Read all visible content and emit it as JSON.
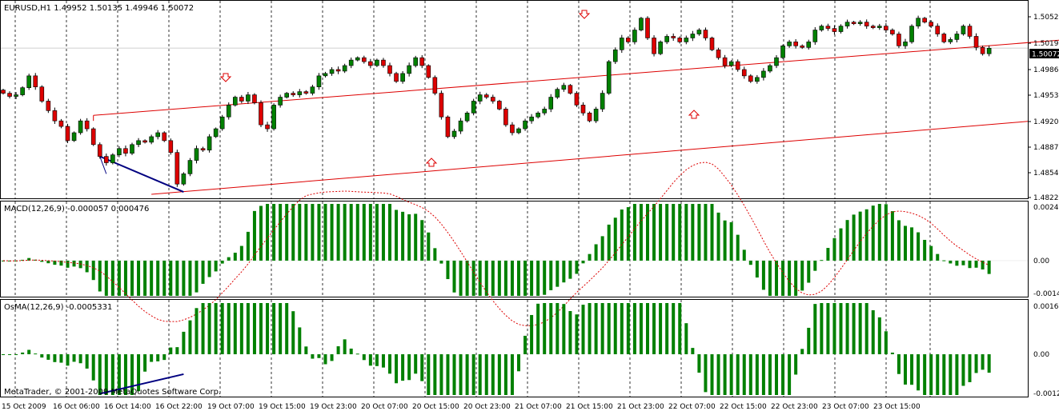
{
  "main": {
    "header": "EURUSD,H1  1.49952 1.50135 1.49946 1.50072",
    "y_ticks": [
      "1.50520",
      "1.50190",
      "1.49860",
      "1.49530",
      "1.49200",
      "1.48870",
      "1.48540",
      "1.48220"
    ],
    "price_tag": "1.50072"
  },
  "macd": {
    "label": "MACD(12,26,9) -0.000057 0.000476",
    "y_ticks": [
      "0.00240",
      "0.00",
      "-0.00149"
    ]
  },
  "osma": {
    "label": "OsMA(12,26,9) -0.0005331",
    "y_ticks": [
      "0.00162",
      "0.00",
      "-0.00129"
    ]
  },
  "x_ticks": [
    "15 Oct 2009",
    "16 Oct 06:00",
    "16 Oct 14:00",
    "16 Oct 22:00",
    "19 Oct 07:00",
    "19 Oct 15:00",
    "19 Oct 23:00",
    "20 Oct 07:00",
    "20 Oct 15:00",
    "20 Oct 23:00",
    "21 Oct 07:00",
    "21 Oct 15:00",
    "21 Oct 23:00",
    "22 Oct 07:00",
    "22 Oct 15:00",
    "22 Oct 23:00",
    "23 Oct 07:00",
    "23 Oct 15:00"
  ],
  "copyright": "MetaTrader, © 2001-2009 MetaQuotes Software Corp.",
  "colors": {
    "bull": "#008000",
    "bear": "#dd0000",
    "channel": "#dd0000",
    "divergence": "#000080",
    "grid": "#000000",
    "signal": "#dd0000",
    "bar": "#008000"
  },
  "chart_data": {
    "type": "candlestick",
    "symbol": "EURUSD",
    "timeframe": "H1",
    "last_bar": {
      "open": 1.49952,
      "high": 1.50135,
      "low": 1.49946,
      "close": 1.50072
    },
    "ylim": [
      1.4818,
      1.5066
    ],
    "closes": [
      1.495,
      1.4946,
      1.4948,
      1.4957,
      1.4972,
      1.4958,
      1.494,
      1.4928,
      1.4915,
      1.4908,
      1.489,
      1.49,
      1.4915,
      1.4905,
      1.4885,
      1.487,
      1.4862,
      1.4872,
      1.488,
      1.4874,
      1.4885,
      1.489,
      1.4888,
      1.4895,
      1.49,
      1.489,
      1.4875,
      1.4835,
      1.4848,
      1.4865,
      1.488,
      1.4878,
      1.4895,
      1.4905,
      1.492,
      1.4935,
      1.4945,
      1.494,
      1.4948,
      1.4938,
      1.491,
      1.4905,
      1.4935,
      1.4945,
      1.495,
      1.4948,
      1.4952,
      1.495,
      1.4958,
      1.4972,
      1.4975,
      1.498,
      1.4978,
      1.4985,
      1.4992,
      1.4995,
      1.499,
      1.4985,
      1.4992,
      1.4985,
      1.4975,
      1.4965,
      1.4975,
      1.4985,
      1.4995,
      1.4985,
      1.497,
      1.495,
      1.492,
      1.4895,
      1.4902,
      1.4915,
      1.4925,
      1.494,
      1.4948,
      1.4945,
      1.494,
      1.493,
      1.491,
      1.49,
      1.4905,
      1.4915,
      1.492,
      1.4925,
      1.493,
      1.4945,
      1.4955,
      1.496,
      1.495,
      1.4935,
      1.4925,
      1.4915,
      1.493,
      1.495,
      1.499,
      1.5005,
      1.502,
      1.5015,
      1.503,
      1.5045,
      1.502,
      1.5,
      1.5015,
      1.5022,
      1.502,
      1.5015,
      1.502,
      1.5025,
      1.503,
      1.502,
      1.5005,
      1.4995,
      1.4985,
      1.499,
      1.498,
      1.4972,
      1.4965,
      1.497,
      1.4978,
      1.4985,
      1.4995,
      1.501,
      1.5015,
      1.501,
      1.5008,
      1.5015,
      1.503,
      1.5035,
      1.5032,
      1.5028,
      1.5035,
      1.504,
      1.5038,
      1.504,
      1.5035,
      1.5033,
      1.5035,
      1.503,
      1.5025,
      1.501,
      1.5015,
      1.5035,
      1.5045,
      1.504,
      1.5035,
      1.5025,
      1.5015,
      1.5018,
      1.5025,
      1.5035,
      1.5022,
      1.5008,
      1.5,
      1.5007
    ],
    "channel": {
      "upper_start": 1.4922,
      "lower_start": 1.4822,
      "slope_per_bar": 5.85e-05
    },
    "indicators": [
      {
        "name": "MACD(12,26,9)",
        "value": -5.7e-05,
        "signal": 0.000476,
        "ylim": [
          -0.00149,
          0.0024
        ]
      },
      {
        "name": "OsMA(12,26,9)",
        "value": -0.0005331,
        "ylim": [
          -0.00129,
          0.00162
        ]
      }
    ]
  }
}
